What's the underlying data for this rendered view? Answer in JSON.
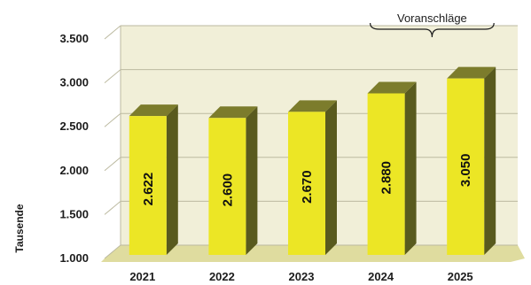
{
  "chart_data": {
    "type": "bar",
    "categories": [
      "2021",
      "2022",
      "2023",
      "2024",
      "2025"
    ],
    "values": [
      2622,
      2600,
      2670,
      2880,
      3050
    ],
    "value_labels": [
      "2.622",
      "2.600",
      "2.670",
      "2.880",
      "3.050"
    ],
    "y_ticks": [
      "1.000",
      "1.500",
      "2.000",
      "2.500",
      "3.000",
      "3.500"
    ],
    "y_tick_values": [
      1000,
      1500,
      2000,
      2500,
      3000,
      3500
    ],
    "ylabel": "Tausende",
    "ylim": [
      1000,
      3500
    ],
    "grid": true,
    "annotation": {
      "text": "Voranschläge",
      "categories": [
        "2024",
        "2025"
      ]
    },
    "colors": {
      "bar_front": "#ece625",
      "bar_side": "#595a1e",
      "bar_top": "#7c7c2c",
      "wall": "#f1efd8",
      "floor": "#dfdc9f",
      "grid": "#bcbaa0"
    }
  }
}
